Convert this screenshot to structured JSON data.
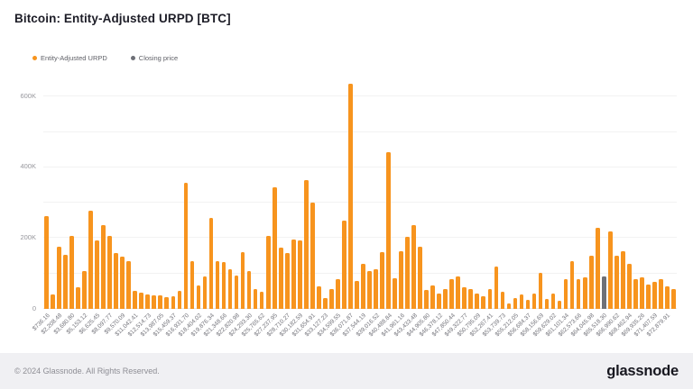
{
  "title": "Bitcoin: Entity-Adjusted URPD [BTC]",
  "legend": [
    {
      "label": "Entity-Adjusted URPD",
      "color": "#F7941E"
    },
    {
      "label": "Closing price",
      "color": "#6E7077"
    }
  ],
  "footer": {
    "copyright": "© 2024 Glassnode. All Rights Reserved.",
    "brand": "glassnode"
  },
  "chart_data": {
    "type": "bar",
    "title": "Bitcoin: Entity-Adjusted URPD [BTC]",
    "xlabel": "",
    "ylabel": "",
    "ylim": [
      0,
      660000
    ],
    "grid": true,
    "gridline_step": 100000,
    "legend_position": "top-left",
    "bar_color": "#F7941E",
    "closing_price_color": "#6E7077",
    "closing_price_index": 88,
    "closing_price_bucket": "$65,518.30",
    "yticks": [
      {
        "value": 0,
        "label": "0"
      },
      {
        "value": 200000,
        "label": "200K"
      },
      {
        "value": 400000,
        "label": "400K"
      },
      {
        "value": 600000,
        "label": "600K"
      }
    ],
    "label_every": 2,
    "x_tick_labels": [
      "$736.16",
      "$2,208.48",
      "$3,680.80",
      "$5,153.12",
      "$6,625.45",
      "$8,097.77",
      "$9,570.09",
      "$11,042.41",
      "$12,514.73",
      "$13,987.05",
      "$15,459.37",
      "$16,931.70",
      "$18,404.02",
      "$19,876.34",
      "$21,348.66",
      "$22,820.98",
      "$24,293.30",
      "$25,765.62",
      "$27,237.95",
      "$28,710.27",
      "$30,182.59",
      "$31,654.91",
      "$33,127.23",
      "$34,599.55",
      "$36,071.87",
      "$37,544.19",
      "$39,016.52",
      "$40,488.84",
      "$41,961.16",
      "$43,433.48",
      "$44,905.80",
      "$46,378.12",
      "$47,850.44",
      "$49,322.77",
      "$50,795.09",
      "$52,267.41",
      "$53,739.73",
      "$55,212.05",
      "$56,684.37",
      "$58,156.69",
      "$59,629.02",
      "$61,101.34",
      "$62,573.66",
      "$64,045.98",
      "$65,518.30",
      "$66,990.62",
      "$68,462.94",
      "$69,935.26",
      "$71,407.59",
      "$72,879.91"
    ],
    "values": [
      263000,
      40000,
      176000,
      153000,
      205000,
      61000,
      106000,
      277000,
      194000,
      236000,
      207000,
      157000,
      148000,
      135000,
      52000,
      46000,
      40000,
      37000,
      37000,
      33000,
      35000,
      52000,
      357000,
      135000,
      65000,
      91000,
      257000,
      135000,
      133000,
      113000,
      93000,
      161000,
      107000,
      57000,
      48000,
      206000,
      343000,
      174000,
      157000,
      197000,
      193000,
      365000,
      300000,
      63000,
      31000,
      55000,
      84000,
      250000,
      635000,
      79000,
      128000,
      107000,
      113000,
      160000,
      442000,
      86000,
      163000,
      204000,
      237000,
      176000,
      53000,
      66000,
      44000,
      55000,
      84000,
      92000,
      62000,
      55000,
      44000,
      35000,
      57000,
      119000,
      48000,
      15000,
      31000,
      40000,
      26000,
      44000,
      101000,
      28000,
      44000,
      22000,
      83000,
      136000,
      83000,
      89000,
      149000,
      228000,
      92000,
      218000,
      149000,
      164000,
      127000,
      85000,
      88000,
      68000,
      77000,
      83000,
      63000,
      57000
    ]
  }
}
